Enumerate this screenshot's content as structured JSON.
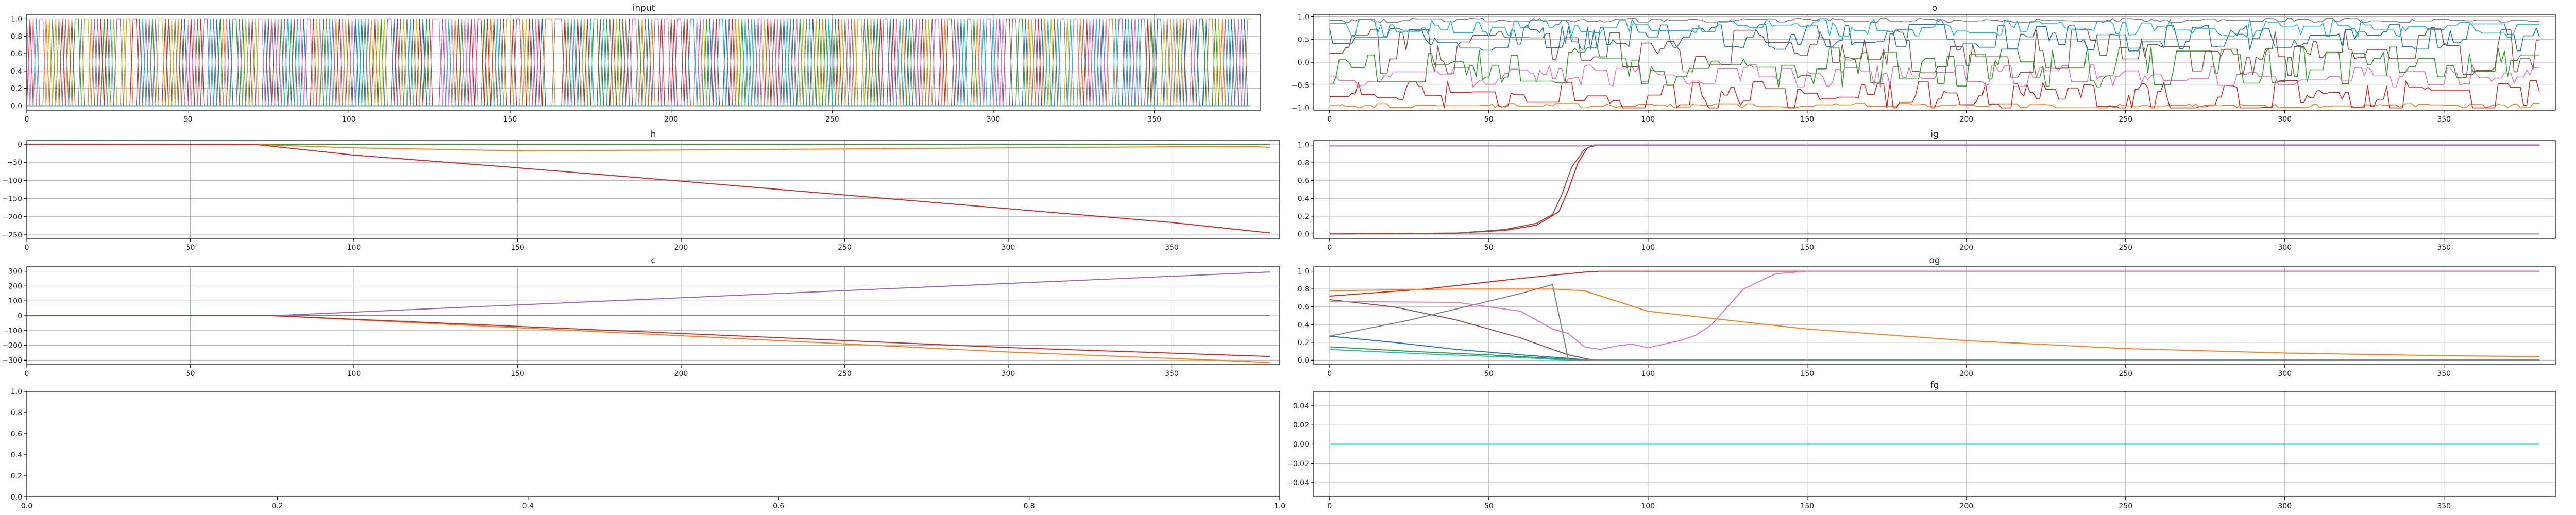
{
  "colors": [
    "#1f77b4",
    "#ff7f0e",
    "#2ca02c",
    "#d62728",
    "#9467bd",
    "#8c564b",
    "#e377c2",
    "#7f7f7f",
    "#bcbd22",
    "#17becf"
  ],
  "chart_data": [
    {
      "id": "input",
      "type": "line",
      "title": "input",
      "xlim": [
        0,
        383
      ],
      "ylim": [
        -0.05,
        1.05
      ],
      "xticks": [
        0,
        50,
        100,
        150,
        200,
        250,
        300,
        350
      ],
      "yticks": [
        0.0,
        0.2,
        0.4,
        0.6,
        0.8,
        1.0
      ],
      "ytick_labels": [
        "0.0",
        "0.2",
        "0.4",
        "0.6",
        "0.8",
        "1.0"
      ],
      "grid": true,
      "pattern": "binary_one_hot_switching",
      "n_series": 10,
      "x_range": [
        0,
        380
      ]
    },
    {
      "id": "o",
      "type": "line",
      "title": "o",
      "xlim": [
        -5,
        385
      ],
      "ylim": [
        -1.05,
        1.05
      ],
      "xticks": [
        0,
        50,
        100,
        150,
        200,
        250,
        300,
        350
      ],
      "yticks": [
        -1.0,
        -0.5,
        0.0,
        0.5,
        1.0
      ],
      "ytick_labels": [
        "−1.0",
        "−0.5",
        "0.0",
        "0.5",
        "1.0"
      ],
      "grid": true,
      "pattern": "noisy_oscillating",
      "series": [
        {
          "color_index": 1,
          "level": -0.95,
          "amp": 0.05
        },
        {
          "color_index": 3,
          "level": -0.75,
          "amp": 0.35
        },
        {
          "color_index": 6,
          "level": -0.3,
          "amp": 0.25
        },
        {
          "color_index": 2,
          "level": -0.1,
          "amp": 0.45
        },
        {
          "color_index": 5,
          "level": 0.2,
          "amp": 0.55
        },
        {
          "color_index": 0,
          "level": 0.55,
          "amp": 0.3
        },
        {
          "color_index": 9,
          "level": 0.75,
          "amp": 0.2
        },
        {
          "color_index": 7,
          "level": 0.92,
          "amp": 0.05
        }
      ]
    },
    {
      "id": "h",
      "type": "line",
      "title": "h",
      "xlim": [
        0,
        383
      ],
      "ylim": [
        -260,
        10
      ],
      "xticks": [
        0,
        50,
        100,
        150,
        200,
        250,
        300,
        350
      ],
      "yticks": [
        0,
        -50,
        -100,
        -150,
        -200,
        -250
      ],
      "ytick_labels": [
        "0",
        "−50",
        "−100",
        "−150",
        "−200",
        "−250"
      ],
      "grid": true,
      "series": [
        {
          "color_index": 0,
          "x": [
            0,
            380
          ],
          "y": [
            0,
            0
          ]
        },
        {
          "color_index": 2,
          "x": [
            0,
            380
          ],
          "y": [
            0,
            0
          ]
        },
        {
          "color_index": 1,
          "x": [
            0,
            70,
            100,
            150,
            200,
            250,
            300,
            350,
            375,
            380
          ],
          "y": [
            0,
            -1,
            -10,
            -18,
            -16,
            -13,
            -10,
            -7,
            -6,
            -9
          ]
        },
        {
          "color_index": 3,
          "x": [
            0,
            70,
            100,
            150,
            200,
            250,
            300,
            350,
            380
          ],
          "y": [
            0,
            -1,
            -30,
            -65,
            -102,
            -140,
            -178,
            -216,
            -245
          ]
        }
      ]
    },
    {
      "id": "ig",
      "type": "line",
      "title": "ig",
      "xlim": [
        -5,
        385
      ],
      "ylim": [
        -0.05,
        1.05
      ],
      "xticks": [
        0,
        50,
        100,
        150,
        200,
        250,
        300,
        350
      ],
      "yticks": [
        0.0,
        0.2,
        0.4,
        0.6,
        0.8,
        1.0
      ],
      "ytick_labels": [
        "0.0",
        "0.2",
        "0.4",
        "0.6",
        "0.8",
        "1.0"
      ],
      "grid": true,
      "series": [
        {
          "color_index": 7,
          "x": [
            0,
            380
          ],
          "y": [
            0,
            0
          ]
        },
        {
          "color_index": 3,
          "x": [
            0,
            40,
            55,
            65,
            72,
            75,
            78,
            81,
            84,
            100,
            380
          ],
          "y": [
            0,
            0.01,
            0.04,
            0.1,
            0.25,
            0.5,
            0.8,
            0.97,
            1.0,
            1.0,
            1.0
          ]
        },
        {
          "color_index": 5,
          "x": [
            0,
            40,
            55,
            65,
            70,
            73,
            76,
            80,
            83,
            100,
            380
          ],
          "y": [
            0,
            0.01,
            0.05,
            0.12,
            0.22,
            0.45,
            0.75,
            0.95,
            1.0,
            1.0,
            1.0
          ]
        },
        {
          "color_index": 4,
          "x": [
            0,
            80,
            85,
            100,
            380
          ],
          "y": [
            0.99,
            0.99,
            1.0,
            1.0,
            1.0
          ]
        }
      ]
    },
    {
      "id": "c",
      "type": "line",
      "title": "c",
      "xlim": [
        0,
        383
      ],
      "ylim": [
        -330,
        330
      ],
      "xticks": [
        0,
        50,
        100,
        150,
        200,
        250,
        300,
        350
      ],
      "yticks": [
        300,
        200,
        100,
        0,
        -100,
        -200,
        -300
      ],
      "ytick_labels": [
        "300",
        "200",
        "100",
        "0",
        "−100",
        "−200",
        "−300"
      ],
      "grid": true,
      "series": [
        {
          "color_index": 4,
          "x": [
            0,
            75,
            380
          ],
          "y": [
            0,
            0,
            295
          ]
        },
        {
          "color_index": 0,
          "x": [
            0,
            380
          ],
          "y": [
            0,
            0
          ]
        },
        {
          "color_index": 7,
          "x": [
            0,
            380
          ],
          "y": [
            0,
            0
          ]
        },
        {
          "color_index": 1,
          "x": [
            0,
            75,
            200,
            300,
            380
          ],
          "y": [
            0,
            0,
            -135,
            -245,
            -315
          ]
        },
        {
          "color_index": 3,
          "x": [
            0,
            75,
            200,
            300,
            380
          ],
          "y": [
            0,
            0,
            -120,
            -215,
            -275
          ]
        }
      ]
    },
    {
      "id": "og",
      "type": "line",
      "title": "og",
      "xlim": [
        -5,
        385
      ],
      "ylim": [
        -0.05,
        1.05
      ],
      "xticks": [
        0,
        50,
        100,
        150,
        200,
        250,
        300,
        350
      ],
      "yticks": [
        0.0,
        0.2,
        0.4,
        0.6,
        0.8,
        1.0
      ],
      "ytick_labels": [
        "0.0",
        "0.2",
        "0.4",
        "0.6",
        "0.8",
        "1.0"
      ],
      "grid": true,
      "series": [
        {
          "color_index": 3,
          "x": [
            0,
            30,
            60,
            80,
            85,
            380
          ],
          "y": [
            0.72,
            0.8,
            0.92,
            0.99,
            1.0,
            1.0
          ]
        },
        {
          "color_index": 1,
          "x": [
            0,
            40,
            70,
            80,
            100,
            150,
            200,
            250,
            300,
            350,
            380
          ],
          "y": [
            0.78,
            0.8,
            0.8,
            0.78,
            0.55,
            0.35,
            0.22,
            0.13,
            0.08,
            0.05,
            0.04
          ]
        },
        {
          "color_index": 5,
          "x": [
            0,
            20,
            40,
            60,
            70,
            75,
            80,
            83,
            380
          ],
          "y": [
            0.68,
            0.6,
            0.45,
            0.25,
            0.12,
            0.06,
            0.02,
            0.0,
            0.0
          ]
        },
        {
          "color_index": 0,
          "x": [
            0,
            20,
            40,
            60,
            75,
            82,
            380
          ],
          "y": [
            0.27,
            0.2,
            0.12,
            0.06,
            0.02,
            0.0,
            0.0
          ]
        },
        {
          "color_index": 2,
          "x": [
            0,
            25,
            50,
            70,
            80,
            380
          ],
          "y": [
            0.15,
            0.1,
            0.06,
            0.02,
            0.0,
            0.0
          ]
        },
        {
          "color_index": 9,
          "x": [
            0,
            30,
            60,
            75,
            380
          ],
          "y": [
            0.12,
            0.07,
            0.03,
            0.0,
            0.0
          ]
        },
        {
          "color_index": 7,
          "x": [
            0,
            25,
            45,
            60,
            70,
            75,
            380
          ],
          "y": [
            0.27,
            0.45,
            0.62,
            0.75,
            0.85,
            0.0,
            0.0
          ]
        },
        {
          "color_index": 6,
          "x": [
            0,
            40,
            60,
            70,
            75,
            80,
            85,
            90,
            95,
            100,
            105,
            110,
            115,
            120,
            125,
            130,
            140,
            150,
            380
          ],
          "y": [
            0.66,
            0.65,
            0.55,
            0.35,
            0.3,
            0.15,
            0.12,
            0.16,
            0.18,
            0.14,
            0.18,
            0.22,
            0.28,
            0.4,
            0.6,
            0.8,
            0.97,
            1.0,
            1.0
          ]
        }
      ]
    },
    {
      "id": "empty",
      "type": "line",
      "title": "",
      "xlim": [
        0,
        1
      ],
      "ylim": [
        0,
        1
      ],
      "xticks": [
        0,
        0.2,
        0.4,
        0.6,
        0.8,
        1.0
      ],
      "xtick_labels": [
        "0.0",
        "0.2",
        "0.4",
        "0.6",
        "0.8",
        "1.0"
      ],
      "yticks": [
        0,
        0.2,
        0.4,
        0.6,
        0.8,
        1.0
      ],
      "ytick_labels": [
        "0.0",
        "0.2",
        "0.4",
        "0.6",
        "0.8",
        "1.0"
      ],
      "grid": false,
      "series": []
    },
    {
      "id": "fg",
      "type": "line",
      "title": "fg",
      "xlim": [
        -5,
        385
      ],
      "ylim": [
        -0.055,
        0.055
      ],
      "xticks": [
        0,
        50,
        100,
        150,
        200,
        250,
        300,
        350
      ],
      "yticks": [
        0.04,
        0.02,
        0.0,
        -0.02,
        -0.04
      ],
      "ytick_labels": [
        "0.04",
        "0.02",
        "0.00",
        "−0.02",
        "−0.04"
      ],
      "grid": true,
      "series": [
        {
          "color_index": 0,
          "x": [
            0,
            380
          ],
          "y": [
            0,
            0
          ]
        },
        {
          "color_index": 9,
          "x": [
            0,
            380
          ],
          "y": [
            0,
            0
          ]
        }
      ]
    }
  ]
}
